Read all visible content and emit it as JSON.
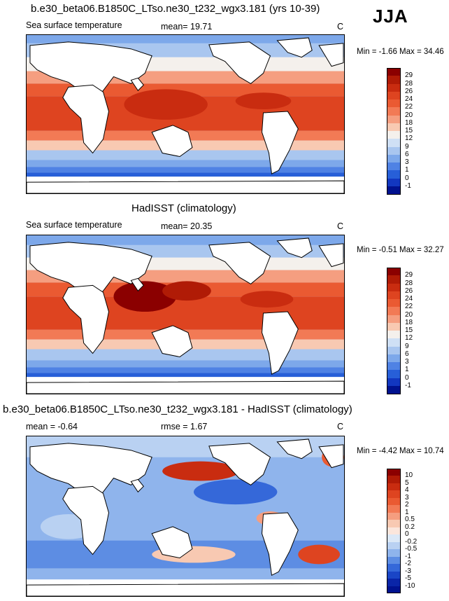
{
  "season": "JJA",
  "panels": [
    {
      "title": "b.e30_beta06.B1850C_LTso.ne30_t232_wgx3.181 (yrs 10-39)",
      "left_label": "Sea surface temperature",
      "mean_label": "mean=  19.71",
      "rmse_label": "",
      "units": "C",
      "minmax": "Min = -1.66 Max =  34.46",
      "colorbar": {
        "labels": [
          "29",
          "28",
          "26",
          "24",
          "22",
          "20",
          "18",
          "15",
          "12",
          "9",
          "6",
          "3",
          "1",
          "0",
          "-1"
        ],
        "colors": [
          "#8b0000",
          "#b01b06",
          "#c92c10",
          "#de4420",
          "#ea5a32",
          "#f27a55",
          "#f59e80",
          "#f8c9b2",
          "#f4f0ec",
          "#cfe0f5",
          "#a9c6ef",
          "#7da8ea",
          "#4f82e4",
          "#275fd8",
          "#1237c0",
          "#00128f"
        ]
      }
    },
    {
      "title": "HadISST (climatology)",
      "left_label": "Sea surface temperature",
      "mean_label": "mean=  20.35",
      "rmse_label": "",
      "units": "C",
      "minmax": "Min = -0.51 Max =  32.27",
      "colorbar": {
        "labels": [
          "29",
          "28",
          "26",
          "24",
          "22",
          "20",
          "18",
          "15",
          "12",
          "9",
          "6",
          "3",
          "1",
          "0",
          "-1"
        ],
        "colors": [
          "#8b0000",
          "#b01b06",
          "#c92c10",
          "#de4420",
          "#ea5a32",
          "#f27a55",
          "#f59e80",
          "#f8c9b2",
          "#f4f0ec",
          "#cfe0f5",
          "#a9c6ef",
          "#7da8ea",
          "#4f82e4",
          "#275fd8",
          "#1237c0",
          "#00128f"
        ]
      }
    },
    {
      "title": "b.e30_beta06.B1850C_LTso.ne30_t232_wgx3.181 - HadISST (climatology)",
      "left_label": "mean =  -0.64",
      "mean_label": "",
      "rmse_label": "rmse =   1.67",
      "units": "C",
      "minmax": "Min = -4.42 Max =  10.74",
      "colorbar": {
        "labels": [
          "10",
          "5",
          "4",
          "3",
          "2",
          "1",
          "0.5",
          "0.2",
          "0",
          "-0.2",
          "-0.5",
          "-1",
          "-2",
          "-3",
          "-5",
          "-10"
        ],
        "colors": [
          "#8b0000",
          "#b01b06",
          "#c92c10",
          "#de4420",
          "#ea5a32",
          "#f27a55",
          "#f59e80",
          "#f8c9b2",
          "#fbe6dc",
          "#dbe8f7",
          "#b9d1f2",
          "#8fb4ec",
          "#5d8de3",
          "#3568d9",
          "#1a45c6",
          "#0a25a8",
          "#00128f"
        ]
      }
    }
  ]
}
